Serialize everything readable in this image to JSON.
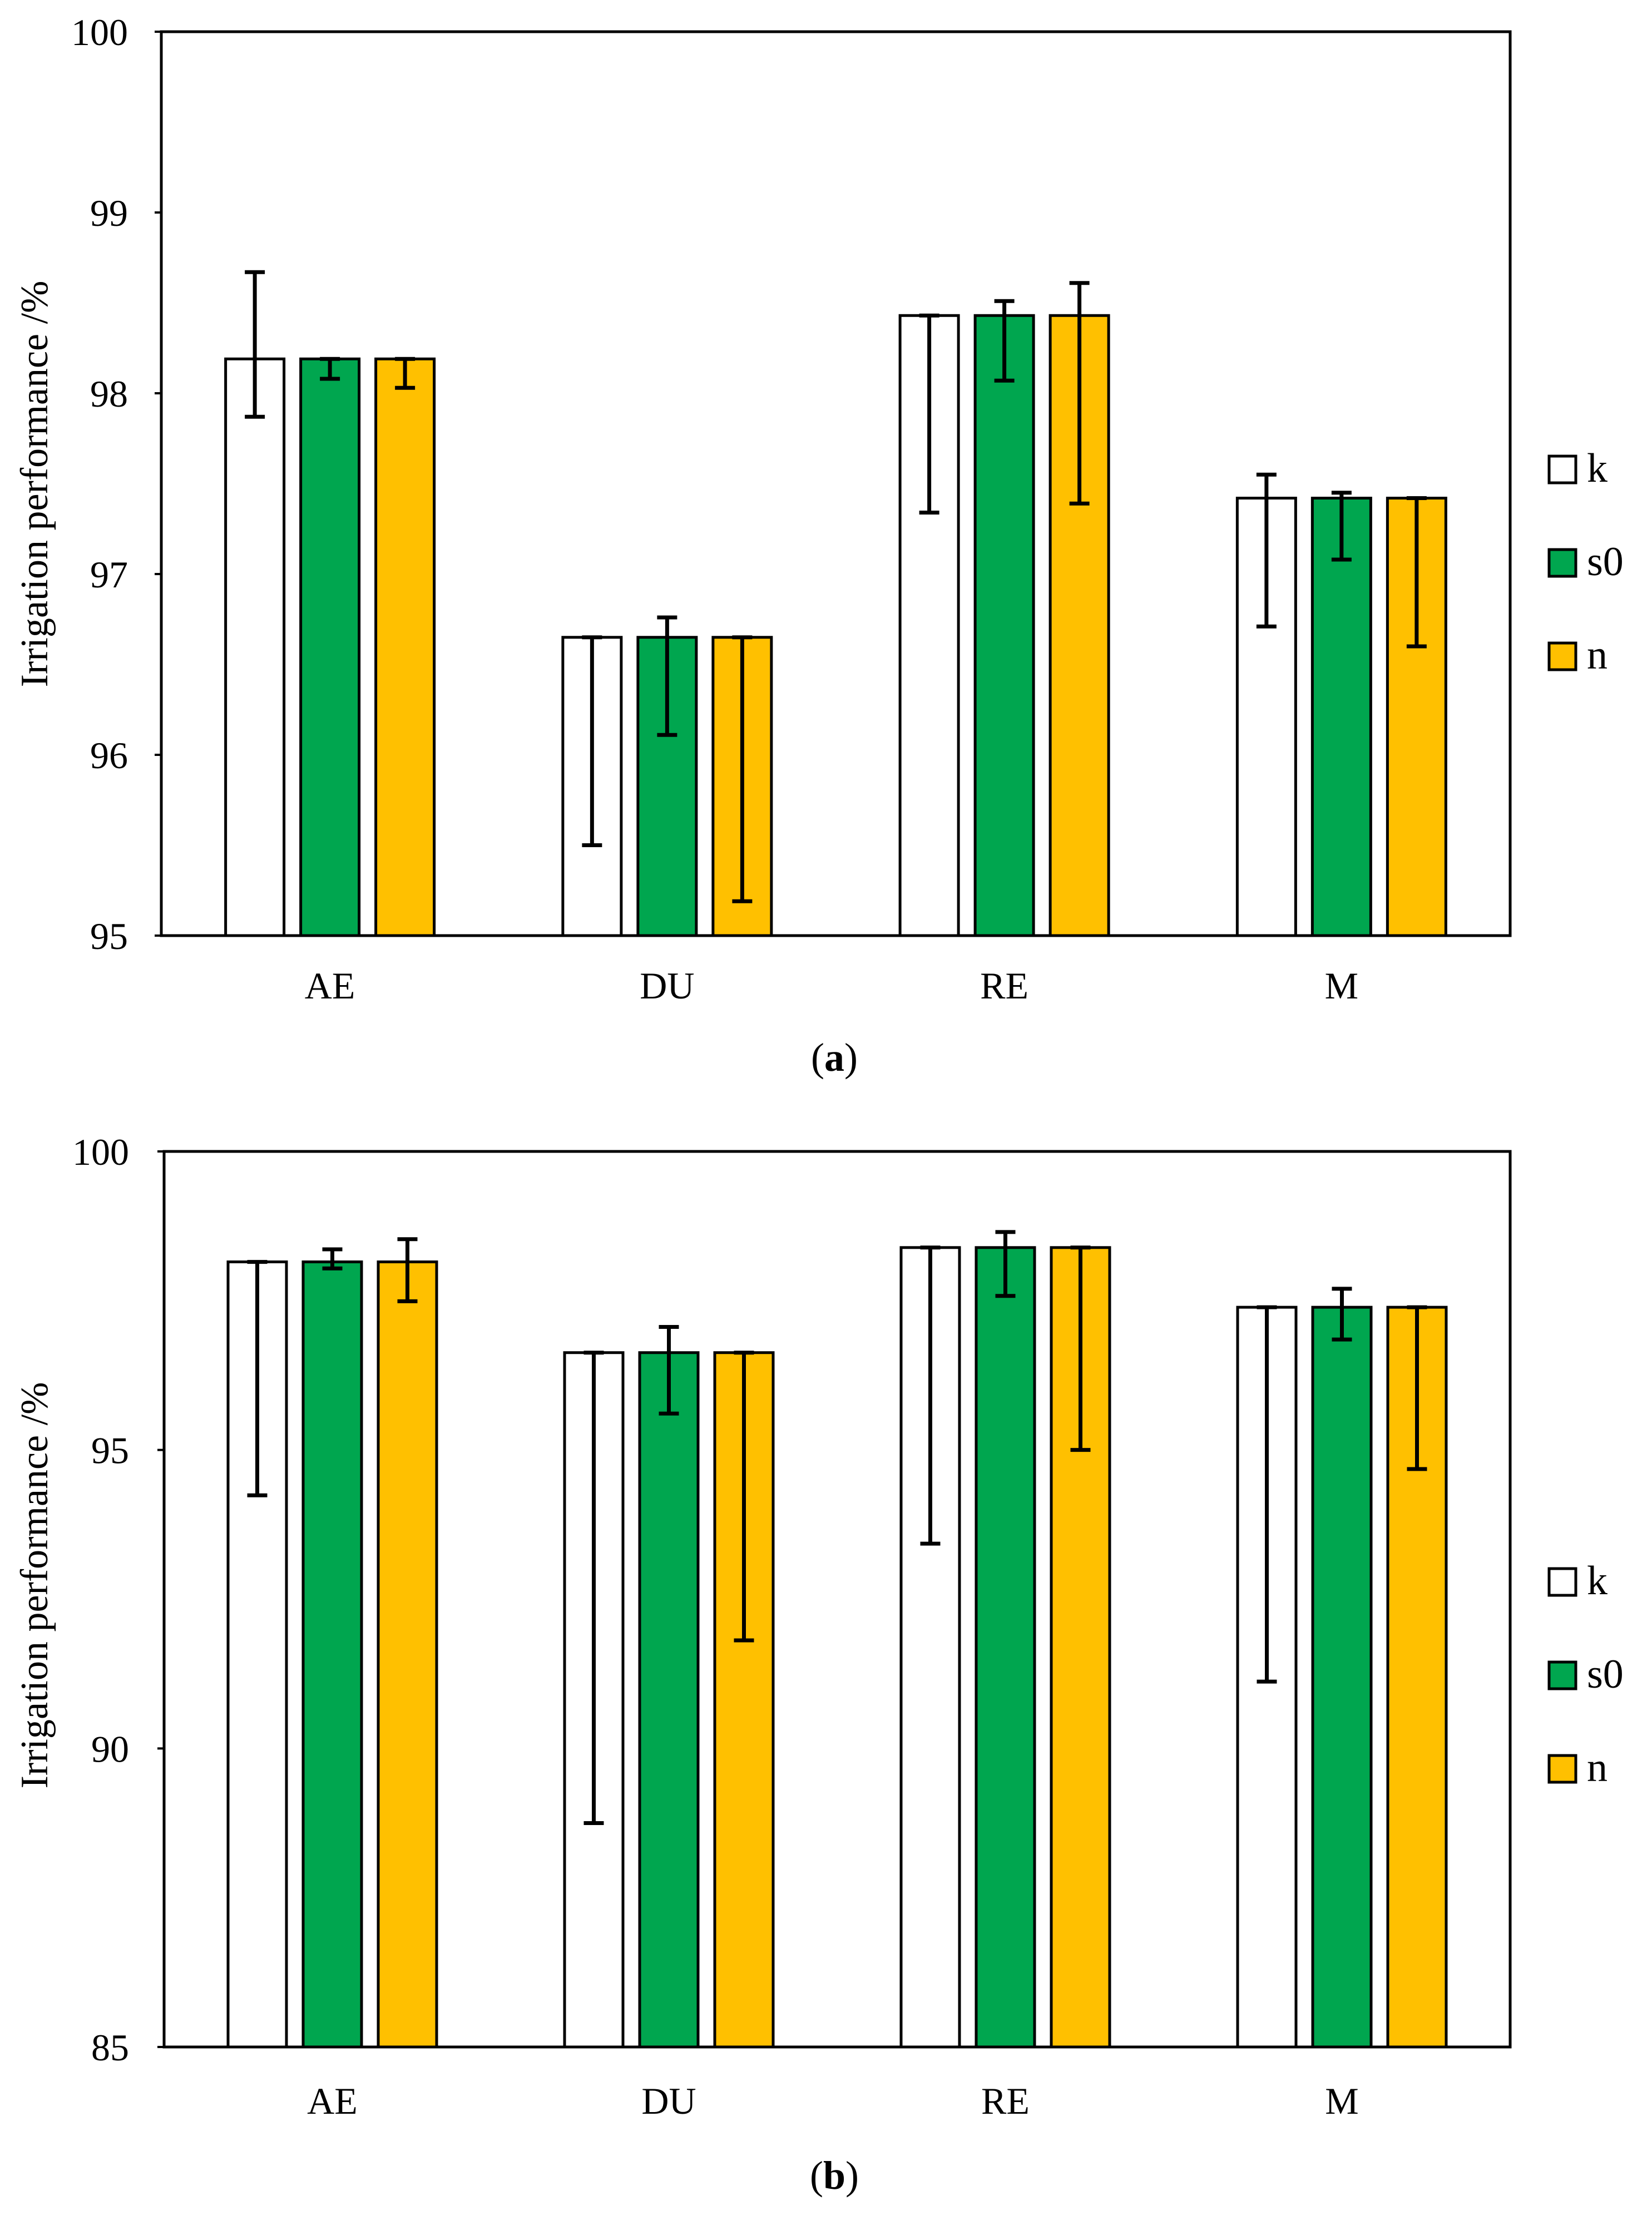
{
  "chart_data": [
    {
      "type": "bar",
      "panel_label": "a",
      "ylabel": "Irrigation performance /%",
      "xlabel": "",
      "ylim": [
        95,
        100
      ],
      "yticks": [
        "95",
        "96",
        "97",
        "98",
        "99",
        "100"
      ],
      "categories": [
        "AE",
        "DU",
        "RE",
        "M"
      ],
      "series": [
        {
          "name": "k",
          "color": "#ffffff",
          "values": [
            98.19,
            96.65,
            98.43,
            97.42
          ],
          "err_low": [
            97.87,
            95.5,
            97.34,
            96.71
          ],
          "err_high": [
            98.67,
            96.65,
            98.43,
            97.55
          ]
        },
        {
          "name": "s0",
          "color": "#00a64f",
          "values": [
            98.19,
            96.65,
            98.43,
            97.42
          ],
          "err_low": [
            98.08,
            96.11,
            98.07,
            97.08
          ],
          "err_high": [
            98.19,
            96.76,
            98.51,
            97.45
          ]
        },
        {
          "name": "n",
          "color": "#ffc000",
          "values": [
            98.19,
            96.65,
            98.43,
            97.42
          ],
          "err_low": [
            98.03,
            95.19,
            97.39,
            96.6
          ],
          "err_high": [
            98.19,
            96.65,
            98.61,
            97.42
          ]
        }
      ],
      "grid": false,
      "legend": "right"
    },
    {
      "type": "bar",
      "panel_label": "b",
      "ylabel": "Irrigation performance /%",
      "xlabel": "",
      "ylim": [
        85,
        100
      ],
      "yticks": [
        "85",
        "90",
        "95",
        "100"
      ],
      "categories": [
        "AE",
        "DU",
        "RE",
        "M"
      ],
      "series": [
        {
          "name": "k",
          "color": "#ffffff",
          "values": [
            98.15,
            96.63,
            98.39,
            97.39
          ],
          "err_low": [
            94.24,
            88.75,
            93.43,
            91.12
          ],
          "err_high": [
            98.15,
            96.63,
            98.39,
            97.39
          ]
        },
        {
          "name": "s0",
          "color": "#00a64f",
          "values": [
            98.15,
            96.63,
            98.39,
            97.39
          ],
          "err_low": [
            98.04,
            95.61,
            97.58,
            96.85
          ],
          "err_high": [
            98.36,
            97.06,
            98.65,
            97.7
          ]
        },
        {
          "name": "n",
          "color": "#ffc000",
          "values": [
            98.15,
            96.63,
            98.39,
            97.39
          ],
          "err_low": [
            97.49,
            91.81,
            95.0,
            94.68
          ],
          "err_high": [
            98.53,
            96.63,
            98.39,
            97.39
          ]
        }
      ],
      "grid": false,
      "legend": "right"
    }
  ]
}
